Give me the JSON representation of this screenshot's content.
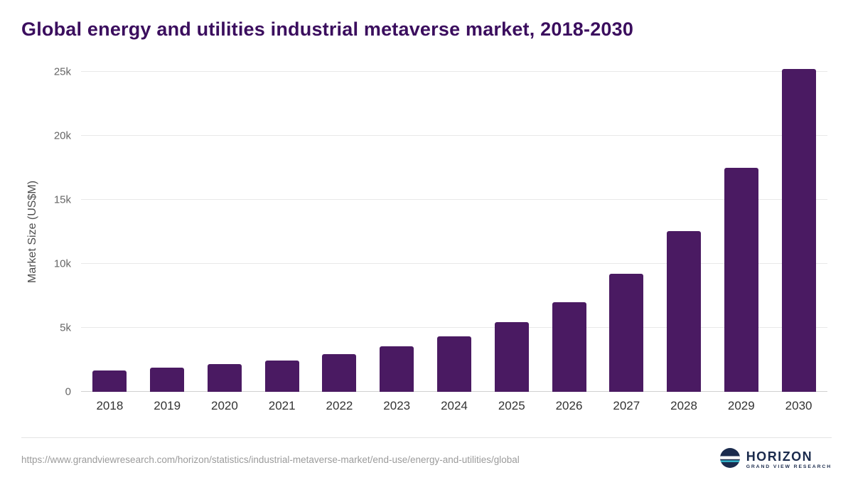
{
  "title": "Global energy and utilities industrial metaverse market, 2018-2030",
  "chart_data": {
    "type": "bar",
    "title": "Global energy and utilities industrial metaverse market, 2018-2030",
    "categories": [
      "2018",
      "2019",
      "2020",
      "2021",
      "2022",
      "2023",
      "2024",
      "2025",
      "2026",
      "2027",
      "2028",
      "2029",
      "2030"
    ],
    "values": [
      1650,
      1900,
      2150,
      2450,
      2950,
      3550,
      4350,
      5450,
      7000,
      9250,
      12550,
      17500,
      25250
    ],
    "xlabel": "",
    "ylabel": "Market Size (US$M)",
    "ylim": [
      0,
      25000
    ],
    "yticks": [
      {
        "value": 0,
        "label": "0"
      },
      {
        "value": 5000,
        "label": "5k"
      },
      {
        "value": 10000,
        "label": "10k"
      },
      {
        "value": 15000,
        "label": "15k"
      },
      {
        "value": 20000,
        "label": "20k"
      },
      {
        "value": 25000,
        "label": "25k"
      }
    ],
    "grid": true,
    "legend": "none",
    "bar_color": "#4a1a62"
  },
  "footer": {
    "source_url": "https://www.grandviewresearch.com/horizon/statistics/industrial-metaverse-market/end-use/energy-and-utilities/global",
    "logo_title": "HORIZON",
    "logo_subtitle": "GRAND VIEW RESEARCH"
  },
  "colors": {
    "title": "#3b0e5e",
    "bar": "#4a1a62",
    "gridline": "#e8e8e8",
    "logo_navy": "#1b2b4d",
    "logo_teal": "#35c4d7"
  }
}
